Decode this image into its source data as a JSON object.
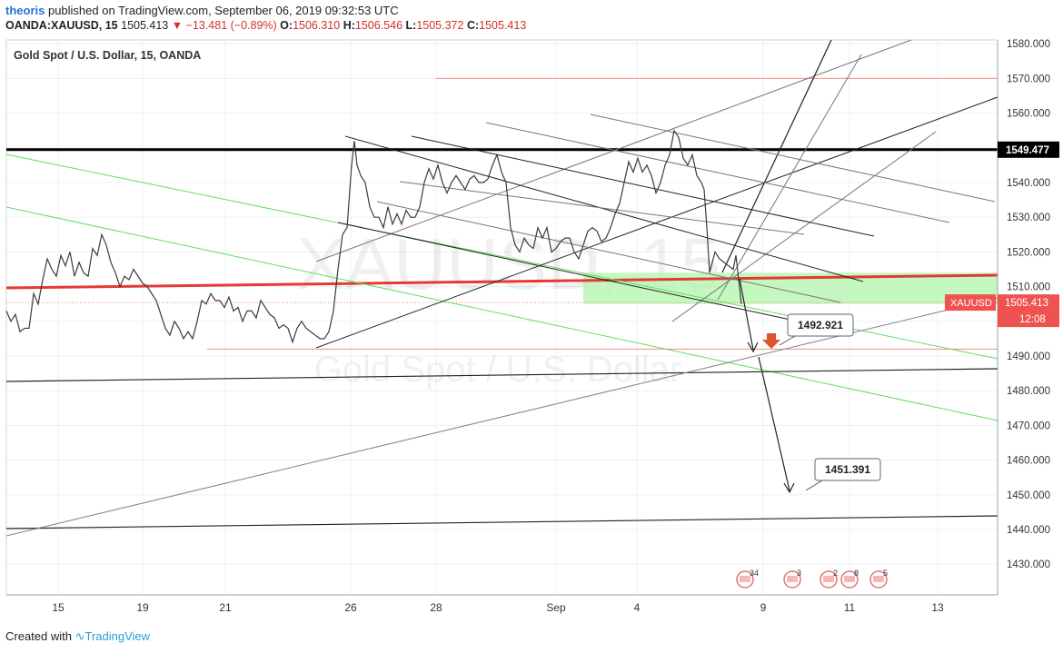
{
  "header": {
    "user": "theoris",
    "published": "published on TradingView.com, September 06, 2019 09:32:53 UTC",
    "symbol": "OANDA:XAUUSD, 15",
    "last": "1505.413",
    "arrow": "▼",
    "change": "−13.481 (−0.89%)",
    "o_label": "O:",
    "o_value": "1506.310",
    "h_label": "H:",
    "h_value": "1506.546",
    "l_label": "L:",
    "l_value": "1505.372",
    "c_label": "C:",
    "c_value": "1505.413"
  },
  "footer": {
    "created": "Created with",
    "brand": "TradingView"
  },
  "chart_data": {
    "type": "line",
    "title": "Gold Spot / U.S. Dollar, 15, OANDA",
    "watermark_symbol": "XAUUSD, 15",
    "watermark_name": "Gold Spot / U.S. Dollar",
    "xlabel": "",
    "ylabel": "",
    "ylim": [
      1421,
      1583
    ],
    "x_ticks": [
      "15",
      "19",
      "21",
      "26",
      "28",
      "Sep",
      "4",
      "9",
      "11",
      "13"
    ],
    "y_ticks": [
      1430,
      1440,
      1450,
      1460,
      1470,
      1480,
      1490,
      1500,
      1510,
      1520,
      1530,
      1540,
      1550,
      1560,
      1570,
      1580
    ],
    "grid": true,
    "price_label": {
      "name": "XAUUSD",
      "value": "1505.413",
      "countdown": "12:08"
    },
    "series": [
      {
        "name": "XAUUSD",
        "color": "#26a69a",
        "points": [
          {
            "x": 0,
            "y": 1503
          },
          {
            "x": 5,
            "y": 1500
          },
          {
            "x": 10,
            "y": 1502
          },
          {
            "x": 15,
            "y": 1497
          },
          {
            "x": 20,
            "y": 1498
          },
          {
            "x": 25,
            "y": 1498
          },
          {
            "x": 30,
            "y": 1508
          },
          {
            "x": 35,
            "y": 1505
          },
          {
            "x": 40,
            "y": 1512
          },
          {
            "x": 45,
            "y": 1518
          },
          {
            "x": 50,
            "y": 1515
          },
          {
            "x": 55,
            "y": 1513
          },
          {
            "x": 60,
            "y": 1519
          },
          {
            "x": 65,
            "y": 1516
          },
          {
            "x": 70,
            "y": 1520
          },
          {
            "x": 75,
            "y": 1513
          },
          {
            "x": 80,
            "y": 1517
          },
          {
            "x": 85,
            "y": 1514
          },
          {
            "x": 90,
            "y": 1513
          },
          {
            "x": 95,
            "y": 1521
          },
          {
            "x": 100,
            "y": 1519
          },
          {
            "x": 105,
            "y": 1525
          },
          {
            "x": 110,
            "y": 1522
          },
          {
            "x": 115,
            "y": 1517
          },
          {
            "x": 120,
            "y": 1514
          },
          {
            "x": 125,
            "y": 1510
          },
          {
            "x": 130,
            "y": 1513
          },
          {
            "x": 135,
            "y": 1512
          },
          {
            "x": 140,
            "y": 1515
          },
          {
            "x": 145,
            "y": 1513
          },
          {
            "x": 150,
            "y": 1511
          },
          {
            "x": 155,
            "y": 1510
          },
          {
            "x": 160,
            "y": 1508
          },
          {
            "x": 165,
            "y": 1506
          },
          {
            "x": 170,
            "y": 1502
          },
          {
            "x": 175,
            "y": 1498
          },
          {
            "x": 180,
            "y": 1496
          },
          {
            "x": 185,
            "y": 1500
          },
          {
            "x": 190,
            "y": 1498
          },
          {
            "x": 195,
            "y": 1495
          },
          {
            "x": 200,
            "y": 1497
          },
          {
            "x": 205,
            "y": 1495
          },
          {
            "x": 210,
            "y": 1500
          },
          {
            "x": 215,
            "y": 1506
          },
          {
            "x": 220,
            "y": 1505
          },
          {
            "x": 225,
            "y": 1508
          },
          {
            "x": 230,
            "y": 1506
          },
          {
            "x": 235,
            "y": 1506
          },
          {
            "x": 240,
            "y": 1504
          },
          {
            "x": 245,
            "y": 1507
          },
          {
            "x": 250,
            "y": 1503
          },
          {
            "x": 255,
            "y": 1504
          },
          {
            "x": 260,
            "y": 1500
          },
          {
            "x": 265,
            "y": 1503
          },
          {
            "x": 270,
            "y": 1503
          },
          {
            "x": 275,
            "y": 1501
          },
          {
            "x": 280,
            "y": 1506
          },
          {
            "x": 285,
            "y": 1504
          },
          {
            "x": 290,
            "y": 1502
          },
          {
            "x": 295,
            "y": 1501
          },
          {
            "x": 300,
            "y": 1498
          },
          {
            "x": 305,
            "y": 1499
          },
          {
            "x": 310,
            "y": 1498
          },
          {
            "x": 315,
            "y": 1494
          },
          {
            "x": 320,
            "y": 1498
          },
          {
            "x": 325,
            "y": 1500
          },
          {
            "x": 330,
            "y": 1498
          },
          {
            "x": 335,
            "y": 1497
          },
          {
            "x": 340,
            "y": 1496
          },
          {
            "x": 345,
            "y": 1495
          },
          {
            "x": 350,
            "y": 1495
          },
          {
            "x": 355,
            "y": 1497
          },
          {
            "x": 360,
            "y": 1503
          },
          {
            "x": 365,
            "y": 1515
          },
          {
            "x": 370,
            "y": 1525
          },
          {
            "x": 375,
            "y": 1527
          },
          {
            "x": 380,
            "y": 1545
          },
          {
            "x": 383,
            "y": 1552
          },
          {
            "x": 386,
            "y": 1545
          },
          {
            "x": 390,
            "y": 1542
          },
          {
            "x": 395,
            "y": 1540
          },
          {
            "x": 400,
            "y": 1533
          },
          {
            "x": 405,
            "y": 1530
          },
          {
            "x": 410,
            "y": 1530
          },
          {
            "x": 415,
            "y": 1527
          },
          {
            "x": 420,
            "y": 1533
          },
          {
            "x": 425,
            "y": 1528
          },
          {
            "x": 430,
            "y": 1531
          },
          {
            "x": 435,
            "y": 1528
          },
          {
            "x": 440,
            "y": 1532
          },
          {
            "x": 445,
            "y": 1530
          },
          {
            "x": 450,
            "y": 1530
          },
          {
            "x": 455,
            "y": 1533
          },
          {
            "x": 460,
            "y": 1540
          },
          {
            "x": 465,
            "y": 1544
          },
          {
            "x": 470,
            "y": 1541
          },
          {
            "x": 475,
            "y": 1545
          },
          {
            "x": 480,
            "y": 1540
          },
          {
            "x": 485,
            "y": 1537
          },
          {
            "x": 490,
            "y": 1540
          },
          {
            "x": 495,
            "y": 1542
          },
          {
            "x": 500,
            "y": 1540
          },
          {
            "x": 505,
            "y": 1538
          },
          {
            "x": 510,
            "y": 1541
          },
          {
            "x": 515,
            "y": 1542
          },
          {
            "x": 520,
            "y": 1540
          },
          {
            "x": 525,
            "y": 1540
          },
          {
            "x": 530,
            "y": 1541
          },
          {
            "x": 535,
            "y": 1545
          },
          {
            "x": 540,
            "y": 1548
          },
          {
            "x": 545,
            "y": 1543
          },
          {
            "x": 550,
            "y": 1540
          },
          {
            "x": 555,
            "y": 1527
          },
          {
            "x": 560,
            "y": 1522
          },
          {
            "x": 565,
            "y": 1520
          },
          {
            "x": 570,
            "y": 1524
          },
          {
            "x": 575,
            "y": 1522
          },
          {
            "x": 580,
            "y": 1521
          },
          {
            "x": 585,
            "y": 1527
          },
          {
            "x": 590,
            "y": 1524
          },
          {
            "x": 595,
            "y": 1527
          },
          {
            "x": 600,
            "y": 1520
          },
          {
            "x": 605,
            "y": 1521
          },
          {
            "x": 610,
            "y": 1523
          },
          {
            "x": 615,
            "y": 1524
          },
          {
            "x": 620,
            "y": 1524
          },
          {
            "x": 625,
            "y": 1520
          },
          {
            "x": 630,
            "y": 1518
          },
          {
            "x": 635,
            "y": 1522
          },
          {
            "x": 640,
            "y": 1526
          },
          {
            "x": 645,
            "y": 1527
          },
          {
            "x": 650,
            "y": 1526
          },
          {
            "x": 655,
            "y": 1523
          },
          {
            "x": 660,
            "y": 1524
          },
          {
            "x": 665,
            "y": 1527
          },
          {
            "x": 670,
            "y": 1531
          },
          {
            "x": 675,
            "y": 1534
          },
          {
            "x": 680,
            "y": 1540
          },
          {
            "x": 685,
            "y": 1546
          },
          {
            "x": 690,
            "y": 1543
          },
          {
            "x": 695,
            "y": 1547
          },
          {
            "x": 700,
            "y": 1543
          },
          {
            "x": 705,
            "y": 1545
          },
          {
            "x": 710,
            "y": 1542
          },
          {
            "x": 715,
            "y": 1537
          },
          {
            "x": 720,
            "y": 1540
          },
          {
            "x": 725,
            "y": 1545
          },
          {
            "x": 730,
            "y": 1548
          },
          {
            "x": 735,
            "y": 1555
          },
          {
            "x": 740,
            "y": 1553
          },
          {
            "x": 745,
            "y": 1547
          },
          {
            "x": 750,
            "y": 1545
          },
          {
            "x": 755,
            "y": 1548
          },
          {
            "x": 760,
            "y": 1542
          },
          {
            "x": 765,
            "y": 1540
          },
          {
            "x": 768,
            "y": 1538
          },
          {
            "x": 771,
            "y": 1527
          },
          {
            "x": 774,
            "y": 1514
          },
          {
            "x": 777,
            "y": 1517
          },
          {
            "x": 780,
            "y": 1520
          },
          {
            "x": 785,
            "y": 1518
          },
          {
            "x": 790,
            "y": 1517
          },
          {
            "x": 795,
            "y": 1516
          },
          {
            "x": 800,
            "y": 1515
          },
          {
            "x": 803,
            "y": 1519
          },
          {
            "x": 806,
            "y": 1512
          },
          {
            "x": 809,
            "y": 1505
          }
        ]
      }
    ],
    "horizontal_levels": [
      {
        "price": 1549.477,
        "color": "#000000",
        "label": "1549.477"
      },
      {
        "price": 1570,
        "color": "#f28b82"
      },
      {
        "price": 1492,
        "color": "#f28b82"
      },
      {
        "price": 1505.413,
        "color": "#f28b82"
      }
    ],
    "zone": {
      "from": 1505,
      "to": 1514,
      "color": "#b6f5b0"
    },
    "annotations": [
      {
        "text": "1492.921"
      },
      {
        "text": "1451.391"
      }
    ],
    "event_badges": [
      "34",
      "3",
      "2",
      "8",
      "5"
    ]
  }
}
